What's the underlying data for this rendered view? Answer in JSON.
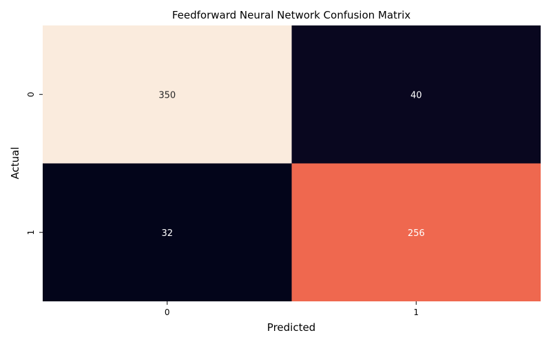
{
  "chart_data": {
    "type": "heatmap",
    "title": "Feedforward Neural Network Confusion Matrix",
    "xlabel": "Predicted",
    "ylabel": "Actual",
    "x_categories": [
      "0",
      "1"
    ],
    "y_categories": [
      "0",
      "1"
    ],
    "values": [
      [
        350,
        40
      ],
      [
        32,
        256
      ]
    ],
    "colorbar": false,
    "colormap": "rocket"
  }
}
